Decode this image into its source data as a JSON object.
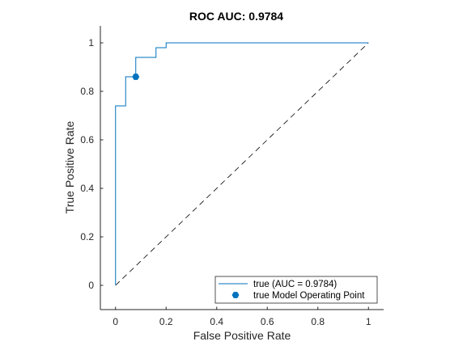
{
  "chart_data": {
    "type": "line",
    "title": "ROC AUC: 0.9784",
    "xlabel": "False Positive Rate",
    "ylabel": "True Positive Rate",
    "xlim": [
      -0.06,
      1.06
    ],
    "ylim": [
      -0.1,
      1.07
    ],
    "xticks": [
      0,
      0.2,
      0.4,
      0.6,
      0.8,
      1
    ],
    "yticks": [
      0,
      0.2,
      0.4,
      0.6,
      0.8,
      1
    ],
    "grid": false,
    "legend_position": "bottom-right",
    "series": [
      {
        "name": "true (AUC = 0.9784)",
        "style": "step-line",
        "color": "#0072BD",
        "x": [
          0,
          0,
          0.04,
          0.04,
          0.08,
          0.08,
          0.16,
          0.16,
          0.2,
          0.2,
          1
        ],
        "y": [
          0,
          0.74,
          0.74,
          0.86,
          0.86,
          0.94,
          0.94,
          0.98,
          0.98,
          1,
          1
        ]
      },
      {
        "name": "true Model Operating Point",
        "style": "marker",
        "marker": "hexagon",
        "color": "#0072BD",
        "x": [
          0.08
        ],
        "y": [
          0.86
        ]
      }
    ],
    "reference_line": {
      "style": "dashed",
      "color": "#000000",
      "x": [
        0,
        1
      ],
      "y": [
        0,
        1
      ]
    }
  }
}
